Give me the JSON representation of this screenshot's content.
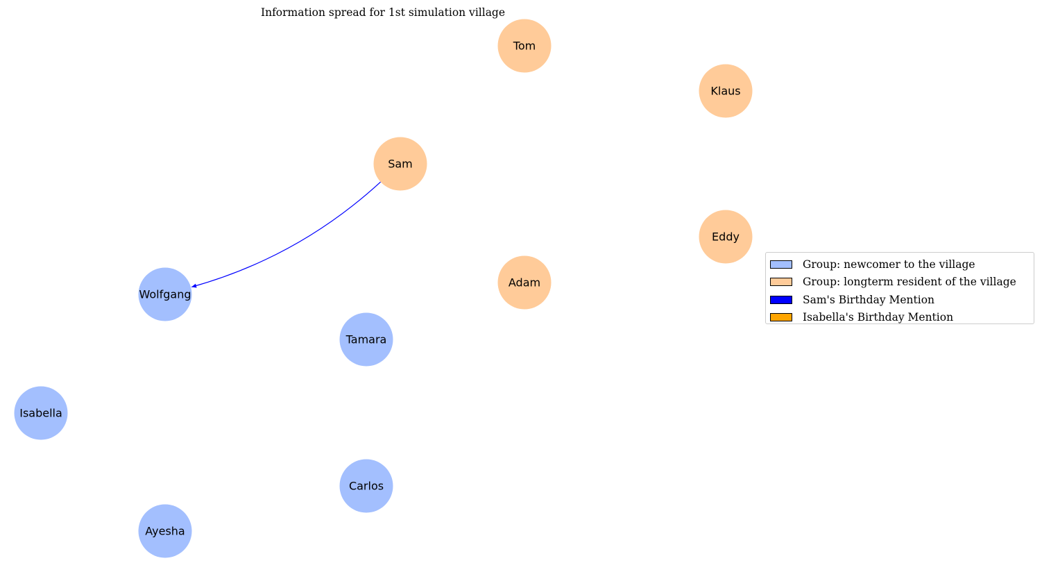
{
  "title": "Information spread for 1st simulation village",
  "colors": {
    "newcomer": "#a3bffe",
    "longterm": "#ffcb99",
    "sam_mention": "#0000ff",
    "isabella_mention": "#ffa500"
  },
  "nodes": [
    {
      "id": "Tom",
      "label": "Tom",
      "group": "longterm"
    },
    {
      "id": "Klaus",
      "label": "Klaus",
      "group": "longterm"
    },
    {
      "id": "Sam",
      "label": "Sam",
      "group": "longterm"
    },
    {
      "id": "Eddy",
      "label": "Eddy",
      "group": "longterm"
    },
    {
      "id": "Adam",
      "label": "Adam",
      "group": "longterm"
    },
    {
      "id": "Wolfgang",
      "label": "Wolfgang",
      "group": "newcomer"
    },
    {
      "id": "Tamara",
      "label": "Tamara",
      "group": "newcomer"
    },
    {
      "id": "Isabella",
      "label": "Isabella",
      "group": "newcomer"
    },
    {
      "id": "Carlos",
      "label": "Carlos",
      "group": "newcomer"
    },
    {
      "id": "Ayesha",
      "label": "Ayesha",
      "group": "newcomer"
    }
  ],
  "edges": [
    {
      "from": "Sam",
      "to": "Wolfgang",
      "type": "sam_mention"
    }
  ],
  "legend": [
    {
      "label": "Group: newcomer to the village",
      "color_key": "newcomer"
    },
    {
      "label": "Group: longterm resident of the village",
      "color_key": "longterm"
    },
    {
      "label": "Sam's Birthday Mention",
      "color_key": "sam_mention"
    },
    {
      "label": "Isabella's Birthday Mention",
      "color_key": "isabella_mention"
    }
  ]
}
